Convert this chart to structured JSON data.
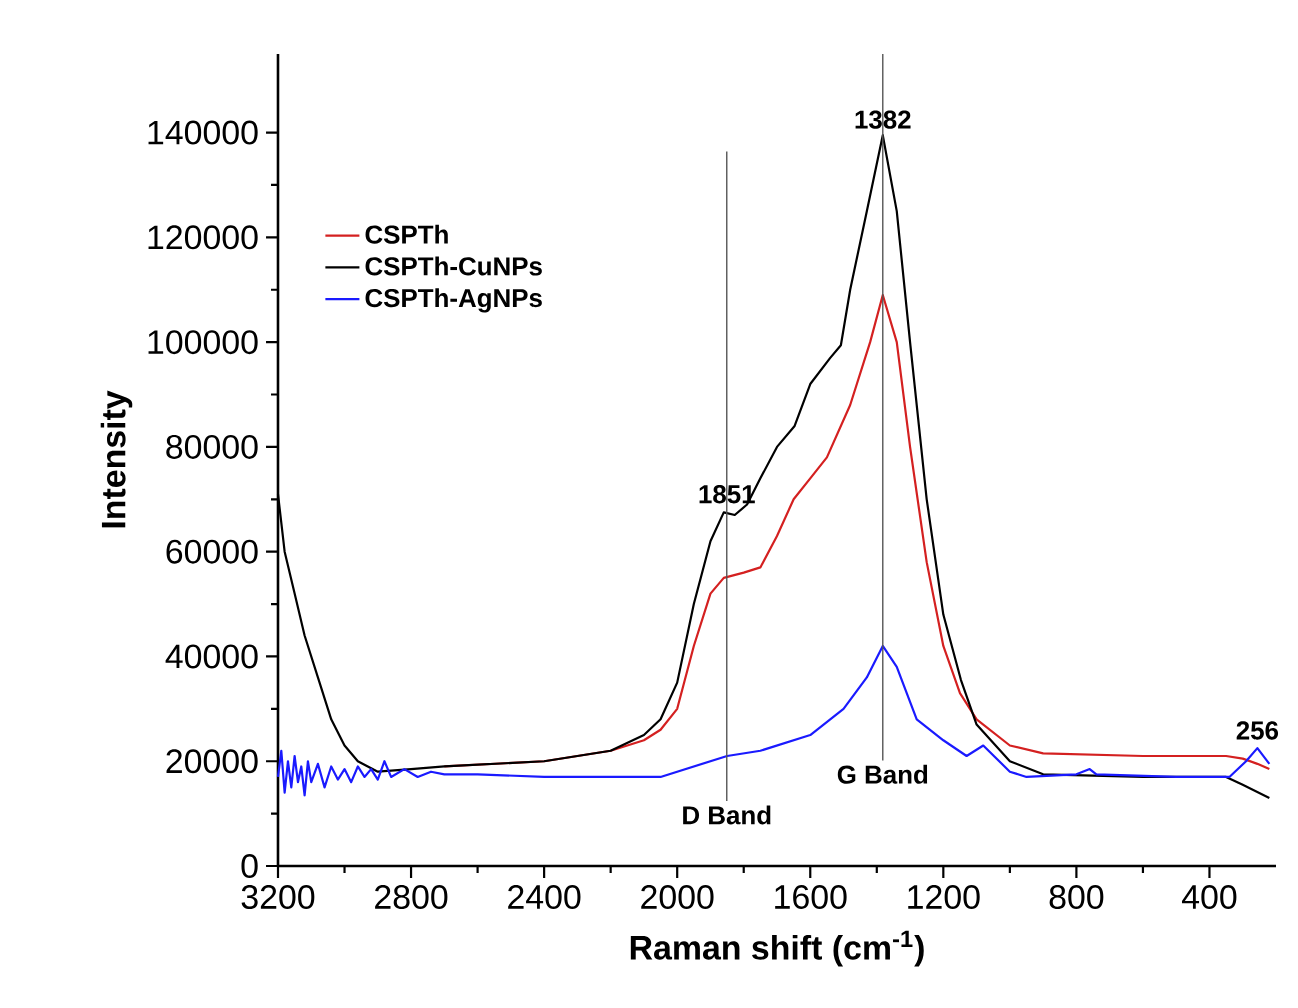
{
  "chart_data": {
    "type": "line",
    "xlabel": "Raman shift (cm$^{-1}$)",
    "ylabel": "Intensity",
    "xlim": [
      3200,
      200
    ],
    "ylim": [
      0,
      155000
    ],
    "xticks": [
      3200,
      2800,
      2400,
      2000,
      1600,
      1200,
      800,
      400
    ],
    "yticks": [
      0,
      20000,
      40000,
      60000,
      80000,
      100000,
      120000,
      140000
    ],
    "grid": false,
    "legend": "top left",
    "marker": "none",
    "line_style": "solid",
    "series": [
      {
        "name": "CSPTh",
        "color": "#d42020",
        "x": [
          2700,
          2400,
          2200,
          2100,
          2050,
          2000,
          1950,
          1900,
          1860,
          1800,
          1750,
          1700,
          1650,
          1600,
          1550,
          1480,
          1420,
          1382,
          1340,
          1300,
          1250,
          1200,
          1150,
          1100,
          1000,
          900,
          600,
          350,
          300,
          256,
          220
        ],
        "values": [
          19000,
          20000,
          22000,
          24000,
          26000,
          30000,
          42000,
          52000,
          55000,
          56000,
          57000,
          63000,
          70000,
          74000,
          78000,
          88000,
          100000,
          109000,
          100000,
          80000,
          58000,
          42000,
          33000,
          28000,
          23000,
          21500,
          21000,
          21000,
          20500,
          19500,
          18500
        ]
      },
      {
        "name": "CSPTh-CuNPs",
        "color": "#000000",
        "x": [
          3200,
          3180,
          3150,
          3120,
          3080,
          3040,
          3000,
          2960,
          2900,
          2800,
          2700,
          2400,
          2200,
          2100,
          2050,
          2000,
          1950,
          1900,
          1860,
          1827,
          1790,
          1750,
          1700,
          1647,
          1600,
          1540,
          1508,
          1480,
          1430,
          1382,
          1340,
          1300,
          1250,
          1200,
          1147,
          1100,
          1000,
          900,
          600,
          350,
          300,
          220
        ],
        "values": [
          71000,
          60000,
          52000,
          44000,
          36000,
          28000,
          23000,
          20000,
          18000,
          18500,
          19000,
          20000,
          22000,
          25000,
          28000,
          35000,
          50000,
          62000,
          67500,
          67000,
          69000,
          74000,
          80000,
          84000,
          92000,
          97000,
          99400,
          110000,
          125000,
          139500,
          125000,
          100000,
          70000,
          48000,
          35500,
          27000,
          20000,
          17500,
          17000,
          17000,
          15500,
          13000
        ]
      },
      {
        "name": "CSPTh-AgNPs",
        "color": "#1a1aff",
        "x": [
          3200,
          3190,
          3180,
          3170,
          3160,
          3150,
          3140,
          3130,
          3120,
          3110,
          3100,
          3080,
          3060,
          3040,
          3020,
          3000,
          2980,
          2960,
          2940,
          2920,
          2900,
          2880,
          2860,
          2820,
          2780,
          2740,
          2700,
          2600,
          2400,
          2300,
          2050,
          1950,
          1850,
          1750,
          1600,
          1500,
          1430,
          1382,
          1340,
          1280,
          1200,
          1130,
          1080,
          1000,
          950,
          800,
          760,
          740,
          500,
          340,
          290,
          256,
          220
        ],
        "values": [
          17000,
          22000,
          14000,
          20000,
          15000,
          21000,
          16000,
          19000,
          13500,
          20000,
          16000,
          19500,
          15000,
          19000,
          16500,
          18500,
          16000,
          19000,
          17000,
          18500,
          16500,
          20000,
          17000,
          18500,
          17000,
          18000,
          17500,
          17500,
          17000,
          17000,
          17000,
          19000,
          21000,
          22000,
          25000,
          30000,
          36000,
          42000,
          38000,
          28000,
          24000,
          21000,
          23000,
          18000,
          17000,
          17500,
          18500,
          17500,
          17000,
          17000,
          20000,
          22500,
          19500
        ]
      }
    ],
    "ref_lines": [
      {
        "axis": "x",
        "value": 1851,
        "label": "D Band",
        "color": "#555555"
      },
      {
        "axis": "x",
        "value": 1382,
        "label": "G Band",
        "color": "#555555"
      }
    ],
    "annotations": [
      {
        "text": "1851",
        "x": 1851,
        "y": 68000
      },
      {
        "text": "1382",
        "x": 1382,
        "y": 139500
      },
      {
        "text": "256",
        "x": 256,
        "y": 22900
      }
    ]
  }
}
